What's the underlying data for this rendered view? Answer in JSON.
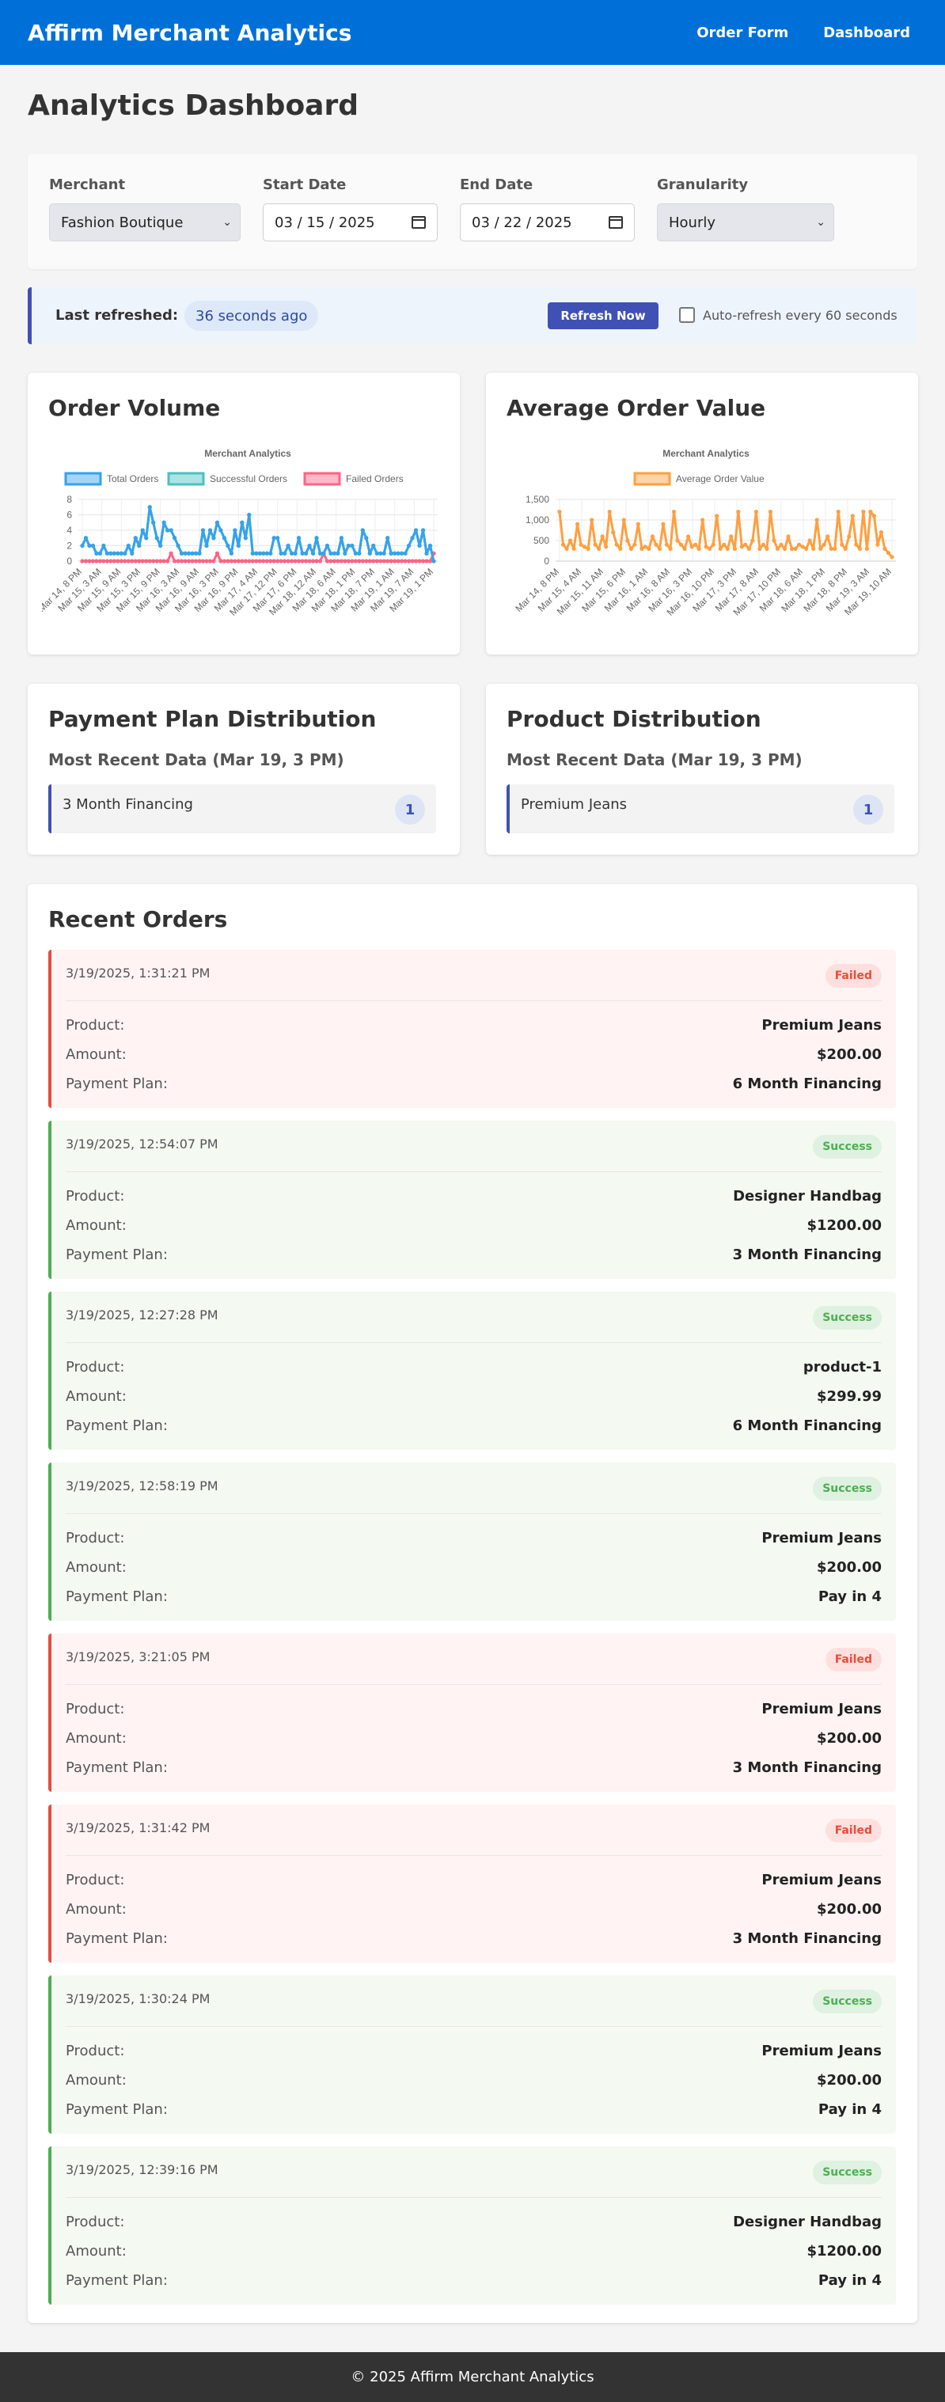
{
  "nav": {
    "brand": "Affirm Merchant Analytics",
    "links": [
      "Order Form",
      "Dashboard"
    ]
  },
  "page": {
    "title": "Analytics Dashboard"
  },
  "filters": {
    "merchant_label": "Merchant",
    "merchant_value": "Fashion Boutique",
    "start_label": "Start Date",
    "start_value": "03 / 15 / 2025",
    "end_label": "End Date",
    "end_value": "03 / 22 / 2025",
    "granularity_label": "Granularity",
    "granularity_value": "Hourly"
  },
  "refresh": {
    "label": "Last refreshed:",
    "ago": "36 seconds ago",
    "button": "Refresh Now",
    "auto_label": "Auto-refresh every 60 seconds",
    "auto_checked": false
  },
  "cards": {
    "order_volume_title": "Order Volume",
    "aov_title": "Average Order Value",
    "payment_title": "Payment Plan Distribution",
    "payment_sub": "Most Recent Data (Mar 19, 3 PM)",
    "payment_items": [
      {
        "label": "3 Month Financing",
        "count": "1"
      }
    ],
    "product_title": "Product Distribution",
    "product_sub": "Most Recent Data (Mar 19, 3 PM)",
    "product_items": [
      {
        "label": "Premium Jeans",
        "count": "1"
      }
    ],
    "orders_title": "Recent Orders"
  },
  "chart_data": [
    {
      "type": "line",
      "title": "Merchant Analytics",
      "x_ticks": [
        "Mar 14, 8 PM",
        "Mar 15, 3 AM",
        "Mar 15, 9 AM",
        "Mar 15, 3 PM",
        "Mar 15, 9 PM",
        "Mar 16, 3 AM",
        "Mar 16, 9 AM",
        "Mar 16, 3 PM",
        "Mar 16, 9 PM",
        "Mar 17, 4 AM",
        "Mar 17, 12 PM",
        "Mar 17, 6 PM",
        "Mar 18, 12 AM",
        "Mar 18, 6 AM",
        "Mar 18, 1 PM",
        "Mar 18, 7 PM",
        "Mar 19, 1 AM",
        "Mar 19, 7 AM",
        "Mar 19, 1 PM"
      ],
      "ylim": [
        0,
        8
      ],
      "y_ticks": [
        "0",
        "2",
        "4",
        "6",
        "8"
      ],
      "series": [
        {
          "name": "Total Orders",
          "color": "#36a2eb",
          "values": [
            2,
            3,
            2,
            2,
            1,
            1,
            2,
            1,
            1,
            1,
            1,
            1,
            1,
            2,
            1,
            3,
            2,
            4,
            3,
            7,
            5,
            3,
            2,
            5,
            4,
            4,
            3,
            2,
            1,
            1,
            1,
            1,
            1,
            1,
            4,
            2,
            4,
            3,
            5,
            4,
            3,
            2,
            1,
            4,
            2,
            5,
            3,
            6,
            1,
            1,
            1,
            1,
            1,
            1,
            3,
            3,
            1,
            1,
            2,
            1,
            1,
            3,
            1,
            1,
            2,
            1,
            3,
            1,
            1,
            2,
            1,
            1,
            1,
            3,
            1,
            2,
            2,
            1,
            1,
            4,
            3,
            1,
            2,
            1,
            1,
            1,
            3,
            1,
            1,
            1,
            1,
            1,
            2,
            3,
            4,
            2,
            4,
            1,
            2,
            0
          ]
        },
        {
          "name": "Successful Orders",
          "color": "#4bc0c0",
          "values": [
            2,
            3,
            2,
            2,
            1,
            1,
            2,
            1,
            1,
            1,
            1,
            1,
            1,
            2,
            1,
            3,
            2,
            4,
            3,
            7,
            5,
            3,
            2,
            5,
            4,
            4,
            3,
            2,
            1,
            1,
            1,
            1,
            1,
            1,
            4,
            2,
            4,
            3,
            5,
            4,
            3,
            2,
            1,
            4,
            2,
            5,
            3,
            6,
            1,
            1,
            1,
            1,
            1,
            1,
            3,
            3,
            1,
            1,
            2,
            1,
            1,
            3,
            1,
            1,
            2,
            1,
            3,
            1,
            1,
            2,
            1,
            1,
            1,
            3,
            1,
            2,
            2,
            1,
            1,
            4,
            3,
            1,
            2,
            1,
            1,
            1,
            3,
            1,
            1,
            1,
            1,
            1,
            2,
            3,
            4,
            2,
            4,
            1,
            2,
            0
          ]
        },
        {
          "name": "Failed Orders",
          "color": "#ff6384",
          "values": [
            0,
            0,
            0,
            0,
            0,
            0,
            0,
            0,
            0,
            0,
            0,
            0,
            0,
            0,
            0,
            0,
            0,
            0,
            0,
            0,
            0,
            0,
            0,
            0,
            0,
            1,
            0,
            0,
            0,
            0,
            0,
            0,
            0,
            0,
            0,
            0,
            0,
            0,
            1,
            0,
            0,
            0,
            0,
            0,
            0,
            0,
            0,
            0,
            0,
            0,
            0,
            0,
            0,
            0,
            0,
            0,
            0,
            0,
            0,
            0,
            0,
            0,
            0,
            0,
            0,
            0,
            0,
            0,
            1,
            0,
            0,
            0,
            0,
            0,
            0,
            0,
            0,
            0,
            0,
            0,
            0,
            0,
            0,
            0,
            0,
            0,
            0,
            0,
            0,
            0,
            0,
            0,
            0,
            0,
            0,
            0,
            0,
            0,
            0,
            1
          ]
        }
      ]
    },
    {
      "type": "line",
      "title": "Merchant Analytics",
      "x_ticks": [
        "Mar 14, 8 PM",
        "Mar 15, 4 AM",
        "Mar 15, 11 AM",
        "Mar 15, 6 PM",
        "Mar 16, 1 AM",
        "Mar 16, 8 AM",
        "Mar 16, 3 PM",
        "Mar 16, 10 PM",
        "Mar 17, 3 PM",
        "Mar 17, 8 AM",
        "Mar 17, 10 PM",
        "Mar 18, 6 AM",
        "Mar 18, 1 PM",
        "Mar 18, 8 PM",
        "Mar 19, 3 AM",
        "Mar 19, 10 AM"
      ],
      "ylim": [
        0,
        1500
      ],
      "y_ticks": [
        "0",
        "500",
        "1,000",
        "1,500"
      ],
      "series": [
        {
          "name": "Average Order Value",
          "color": "#ff9f40",
          "values": [
            1200,
            400,
            300,
            500,
            300,
            900,
            400,
            350,
            300,
            1000,
            400,
            300,
            600,
            350,
            1200,
            700,
            400,
            300,
            1000,
            500,
            300,
            400,
            900,
            300,
            350,
            300,
            600,
            400,
            300,
            900,
            400,
            300,
            1200,
            500,
            400,
            300,
            600,
            350,
            400,
            300,
            1000,
            350,
            300,
            400,
            1100,
            300,
            400,
            300,
            600,
            300,
            1200,
            350,
            400,
            300,
            500,
            1200,
            300,
            400,
            300,
            1200,
            500,
            300,
            400,
            300,
            600,
            300,
            300,
            400,
            350,
            300,
            500,
            300,
            1000,
            300,
            400,
            600,
            300,
            300,
            1200,
            400,
            300,
            600,
            1100,
            400,
            300,
            1200,
            300,
            1200,
            1100,
            400,
            700,
            300,
            200,
            100
          ]
        }
      ]
    }
  ],
  "orders": [
    {
      "time": "3/19/2025, 1:31:21 PM",
      "status": "Failed",
      "kind": "failed",
      "product": "Premium Jeans",
      "amount": "$200.00",
      "plan": "6 Month Financing"
    },
    {
      "time": "3/19/2025, 12:54:07 PM",
      "status": "Success",
      "kind": "success",
      "product": "Designer Handbag",
      "amount": "$1200.00",
      "plan": "3 Month Financing"
    },
    {
      "time": "3/19/2025, 12:27:28 PM",
      "status": "Success",
      "kind": "success",
      "product": "product-1",
      "amount": "$299.99",
      "plan": "6 Month Financing"
    },
    {
      "time": "3/19/2025, 12:58:19 PM",
      "status": "Success",
      "kind": "success",
      "product": "Premium Jeans",
      "amount": "$200.00",
      "plan": "Pay in 4"
    },
    {
      "time": "3/19/2025, 3:21:05 PM",
      "status": "Failed",
      "kind": "failed",
      "product": "Premium Jeans",
      "amount": "$200.00",
      "plan": "3 Month Financing"
    },
    {
      "time": "3/19/2025, 1:31:42 PM",
      "status": "Failed",
      "kind": "failed",
      "product": "Premium Jeans",
      "amount": "$200.00",
      "plan": "3 Month Financing"
    },
    {
      "time": "3/19/2025, 1:30:24 PM",
      "status": "Success",
      "kind": "success",
      "product": "Premium Jeans",
      "amount": "$200.00",
      "plan": "Pay in 4"
    },
    {
      "time": "3/19/2025, 12:39:16 PM",
      "status": "Success",
      "kind": "success",
      "product": "Designer Handbag",
      "amount": "$1200.00",
      "plan": "Pay in 4"
    }
  ],
  "order_labels": {
    "product": "Product:",
    "amount": "Amount:",
    "plan": "Payment Plan:"
  },
  "footer": "© 2025 Affirm Merchant Analytics"
}
